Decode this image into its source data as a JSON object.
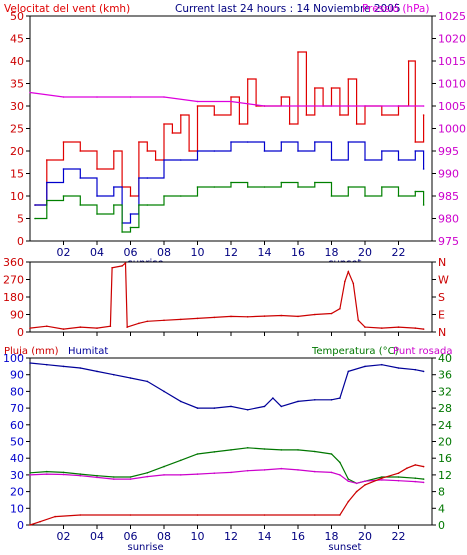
{
  "header": {
    "left_label": "Velocitat del vent (kmh)",
    "title": "Current last 24 hours : 14 Noviembre 2005",
    "right_label": "Pressió (hPa)"
  },
  "colors": {
    "speed": "#e00000",
    "gust_avg": "#0000cc",
    "low": "#008000",
    "pressure": "#dd00dd",
    "direction": "#cc0000",
    "humidity": "#000099",
    "temperature": "#007700",
    "dewpoint": "#cc00cc",
    "rain": "#cc0000",
    "frame_bg": "#ffffff",
    "grid": "#000000"
  },
  "time_axis": {
    "ticks": [
      "02",
      "04",
      "06",
      "08",
      "10",
      "12",
      "14",
      "16",
      "18",
      "20",
      "22"
    ],
    "sunrise_label": "sunrise",
    "sunset_label": "sunset",
    "sunrise_hour": 6.9,
    "sunset_hour": 18.8
  },
  "panel3_labels": {
    "rain": "Pluja (mm)",
    "humidity": "Humitat",
    "temperature": "Temperatura (°C)",
    "dewpoint": "Punt rosada"
  },
  "chart_data": [
    {
      "type": "line",
      "x_unit": "hour",
      "ylim_left": [
        0,
        50
      ],
      "yticks_left": [
        "0",
        "5",
        "10",
        "15",
        "20",
        "25",
        "30",
        "35",
        "40",
        "45",
        "50"
      ],
      "ylim_right": [
        975,
        1025
      ],
      "yticks_right": [
        "975",
        "980",
        "985",
        "990",
        "995",
        "1000",
        "1005",
        "1010",
        "1015",
        "1020",
        "1025"
      ],
      "series": [
        {
          "key": "speed",
          "axis": "left",
          "x": [
            0.3,
            1,
            2,
            3,
            4,
            5,
            5.5,
            6,
            6.5,
            7,
            7.5,
            8,
            8.5,
            9,
            9.5,
            10,
            11,
            12,
            12.5,
            13,
            13.5,
            14,
            15,
            15.5,
            16,
            16.5,
            17,
            17.5,
            18,
            18.5,
            19,
            19.5,
            20,
            21,
            22,
            22.6,
            23,
            23.5
          ],
          "y": [
            8,
            18,
            22,
            20,
            16,
            20,
            12,
            10,
            22,
            20,
            18,
            26,
            24,
            28,
            20,
            30,
            28,
            32,
            26,
            36,
            30,
            30,
            32,
            26,
            42,
            28,
            34,
            30,
            34,
            28,
            36,
            26,
            30,
            28,
            30,
            40,
            22,
            28
          ]
        },
        {
          "key": "gust_avg",
          "axis": "left",
          "x": [
            0.3,
            1,
            2,
            3,
            4,
            5,
            5.5,
            6,
            6.5,
            7,
            8,
            9,
            10,
            11,
            12,
            13,
            14,
            15,
            16,
            17,
            18,
            19,
            20,
            21,
            22,
            23,
            23.5
          ],
          "y": [
            8,
            13,
            16,
            14,
            10,
            12,
            4,
            6,
            14,
            14,
            18,
            18,
            20,
            20,
            22,
            22,
            20,
            22,
            20,
            22,
            18,
            22,
            18,
            20,
            18,
            20,
            16
          ]
        },
        {
          "key": "low",
          "axis": "left",
          "x": [
            0.3,
            1,
            2,
            3,
            4,
            5,
            5.5,
            6,
            6.5,
            7,
            8,
            9,
            10,
            11,
            12,
            13,
            14,
            15,
            16,
            17,
            18,
            19,
            20,
            21,
            22,
            23,
            23.5
          ],
          "y": [
            5,
            9,
            10,
            8,
            6,
            8,
            2,
            3,
            8,
            8,
            10,
            10,
            12,
            12,
            13,
            12,
            12,
            13,
            12,
            13,
            10,
            12,
            10,
            12,
            10,
            11,
            8
          ]
        },
        {
          "key": "pressure",
          "axis": "right",
          "x": [
            0,
            2,
            4,
            6,
            8,
            10,
            12,
            14,
            16,
            18,
            20,
            22,
            23.5
          ],
          "y": [
            1008,
            1007,
            1007,
            1007,
            1007,
            1006,
            1006,
            1005,
            1005,
            1005,
            1005,
            1005,
            1005
          ]
        }
      ]
    },
    {
      "type": "line",
      "x_unit": "hour",
      "ylim_left": [
        0,
        360
      ],
      "yticks_left": [
        "0",
        "90",
        "180",
        "270",
        "360"
      ],
      "yticks_right": [
        "N",
        "E",
        "S",
        "W",
        "N"
      ],
      "series": [
        {
          "key": "direction",
          "x": [
            0,
            1,
            2,
            3,
            4,
            4.8,
            4.9,
            5.5,
            5.7,
            5.8,
            6.5,
            7,
            8,
            9,
            10,
            11,
            12,
            13,
            14,
            15,
            16,
            17,
            18,
            18.5,
            18.8,
            19,
            19.3,
            19.6,
            20,
            21,
            22,
            23,
            23.5
          ],
          "y": [
            20,
            30,
            15,
            25,
            20,
            30,
            330,
            340,
            355,
            25,
            45,
            55,
            60,
            65,
            70,
            75,
            80,
            78,
            82,
            85,
            80,
            90,
            95,
            120,
            260,
            310,
            250,
            60,
            25,
            20,
            25,
            20,
            15
          ]
        }
      ]
    },
    {
      "type": "line",
      "x_unit": "hour",
      "ylim_left": [
        0,
        100
      ],
      "yticks_left": [
        "0",
        "10",
        "20",
        "30",
        "40",
        "50",
        "60",
        "70",
        "80",
        "90",
        "100"
      ],
      "ylim_right": [
        0,
        40
      ],
      "yticks_right": [
        "0",
        "4",
        "8",
        "12",
        "16",
        "20",
        "24",
        "28",
        "32",
        "36",
        "40"
      ],
      "series": [
        {
          "key": "humidity",
          "axis": "left",
          "x": [
            0,
            1,
            2,
            3,
            4,
            5,
            6,
            7,
            8,
            9,
            10,
            11,
            12,
            13,
            14,
            14.5,
            15,
            16,
            17,
            18,
            18.5,
            19,
            20,
            21,
            22,
            23,
            23.5
          ],
          "y": [
            97,
            96,
            95,
            94,
            92,
            90,
            88,
            86,
            80,
            74,
            70,
            70,
            71,
            69,
            71,
            76,
            71,
            74,
            75,
            75,
            76,
            92,
            95,
            96,
            94,
            93,
            92
          ]
        },
        {
          "key": "temperature",
          "axis": "right",
          "x": [
            0,
            1,
            2,
            3,
            4,
            5,
            6,
            7,
            8,
            9,
            10,
            11,
            12,
            13,
            14,
            15,
            16,
            17,
            18,
            18.5,
            19,
            19.5,
            20,
            21,
            22,
            23,
            23.5
          ],
          "y": [
            12.5,
            12.8,
            12.6,
            12.2,
            11.8,
            11.5,
            11.5,
            12.5,
            14,
            15.5,
            17,
            17.5,
            18,
            18.5,
            18.2,
            18,
            18,
            17.6,
            17,
            15,
            11,
            10,
            10.5,
            11.5,
            11.5,
            11.2,
            11
          ]
        },
        {
          "key": "dewpoint",
          "axis": "right",
          "x": [
            0,
            1,
            2,
            3,
            4,
            5,
            6,
            7,
            8,
            9,
            10,
            11,
            12,
            13,
            14,
            15,
            16,
            17,
            18,
            18.5,
            19,
            19.5,
            20,
            21,
            22,
            23,
            23.5
          ],
          "y": [
            12,
            12.2,
            12.1,
            11.8,
            11.4,
            11,
            11,
            11.6,
            12,
            12,
            12.2,
            12.4,
            12.6,
            13,
            13.2,
            13.5,
            13.2,
            12.8,
            12.6,
            12,
            10.5,
            10,
            10.5,
            10.8,
            10.6,
            10.4,
            10.2
          ]
        },
        {
          "key": "rain",
          "axis": "left",
          "x": [
            0,
            0.6,
            1.5,
            3,
            6,
            10,
            14,
            17,
            18.5,
            19,
            19.5,
            20,
            21,
            22,
            22.5,
            23,
            23.5
          ],
          "y": [
            0,
            2,
            5,
            6,
            6,
            6,
            6,
            6,
            6,
            14,
            20,
            24,
            28,
            31,
            34,
            36,
            35
          ]
        }
      ]
    }
  ]
}
